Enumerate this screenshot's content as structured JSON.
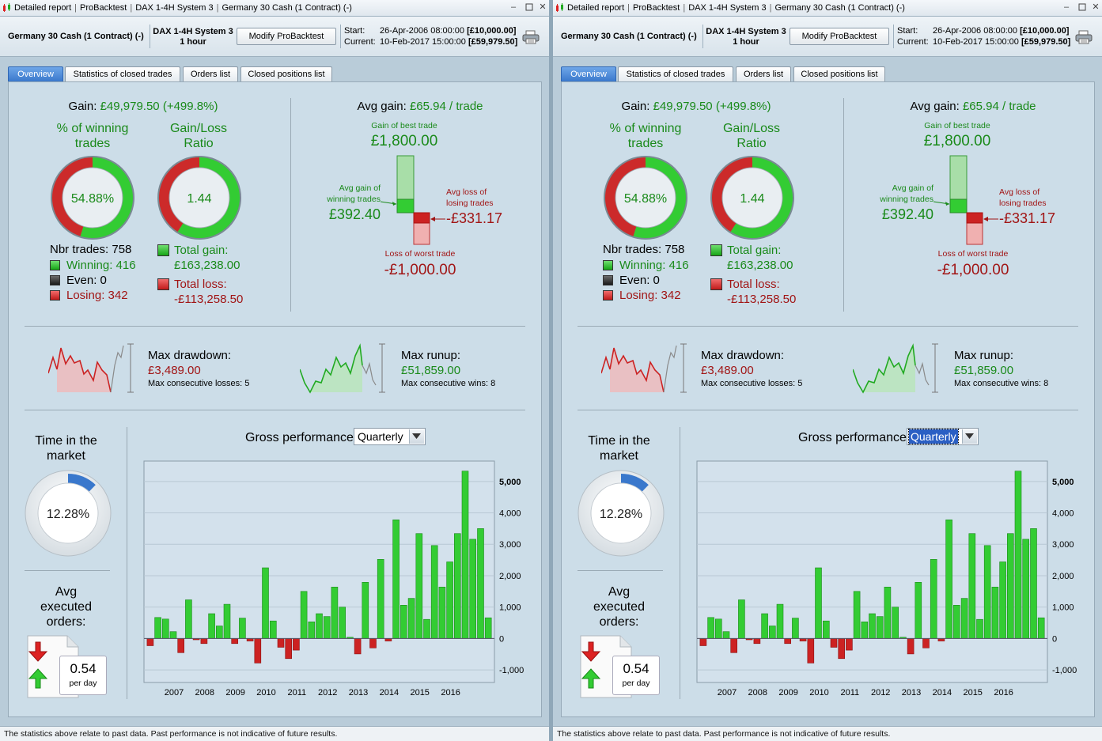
{
  "panels": [
    {
      "window": {
        "title_parts": [
          "Detailed report",
          "ProBacktest",
          "DAX 1-4H System 3",
          "Germany 30 Cash (1 Contract) (-)"
        ]
      },
      "header": {
        "instrument": "Germany 30 Cash (1 Contract) (-)",
        "system_name": "DAX 1-4H System 3",
        "timeframe": "1 hour",
        "modify_button": "Modify ProBacktest",
        "start_label": "Start:",
        "start_date": "26-Apr-2006 08:00:00",
        "start_capital": "[£10,000.00]",
        "current_label": "Current:",
        "current_date": "10-Feb-2017 15:00:00",
        "current_capital": "[£59,979.50]"
      },
      "tabs": [
        "Overview",
        "Statistics of closed trades",
        "Orders list",
        "Closed positions list"
      ],
      "active_tab": 0,
      "gross_dropdown_focused": false
    },
    {
      "window": {
        "title_parts": [
          "Detailed report",
          "ProBacktest",
          "DAX 1-4H System 3",
          "Germany 30 Cash (1 Contract) (-)"
        ]
      },
      "header": {
        "instrument": "Germany 30 Cash (1 Contract) (-)",
        "system_name": "DAX 1-4H System 3",
        "timeframe": "1 hour",
        "modify_button": "Modify ProBacktest",
        "start_label": "Start:",
        "start_date": "26-Apr-2006 08:00:00",
        "start_capital": "[£10,000.00]",
        "current_label": "Current:",
        "current_date": "10-Feb-2017 15:00:00",
        "current_capital": "[£59,979.50]"
      },
      "tabs": [
        "Overview",
        "Statistics of closed trades",
        "Orders list",
        "Closed positions list"
      ],
      "active_tab": 0,
      "gross_dropdown_focused": true
    }
  ],
  "overview": {
    "gain_label": "Gain:",
    "gain_value": "£49,979.50 (+499.8%)",
    "winning_pct_title_1": "% of winning",
    "winning_pct_title_2": "trades",
    "winning_pct_value": "54.88%",
    "winning_fraction": 0.5488,
    "ratio_title_1": "Gain/Loss",
    "ratio_title_2": "Ratio",
    "ratio_value": "1.44",
    "ratio_green_fraction": 0.59,
    "nbr_trades_label": "Nbr trades:",
    "nbr_trades": "758",
    "winning_label": "Winning:",
    "winning": "416",
    "even_label": "Even:",
    "even": "0",
    "losing_label": "Losing:",
    "losing": "342",
    "total_gain_label": "Total gain:",
    "total_gain": "£163,238.00",
    "total_loss_label": "Total loss:",
    "total_loss": "-£113,258.50",
    "avg_gain_label": "Avg gain:",
    "avg_gain_value": "£65.94 / trade",
    "best_trade_label": "Gain of best trade",
    "best_trade": "£1,800.00",
    "avg_win_label_1": "Avg gain of",
    "avg_win_label_2": "winning trades",
    "avg_win": "£392.40",
    "avg_loss_label_1": "Avg loss of",
    "avg_loss_label_2": "losing trades",
    "avg_loss": "-£331.17",
    "worst_trade_label": "Loss of worst trade",
    "worst_trade": "-£1,000.00",
    "max_drawdown_label": "Max drawdown:",
    "max_drawdown": "£3,489.00",
    "max_consec_losses_label": "Max consecutive losses:",
    "max_consec_losses": "5",
    "max_runup_label": "Max runup:",
    "max_runup": "£51,859.00",
    "max_consec_wins_label": "Max consecutive wins:",
    "max_consec_wins": "8",
    "time_in_market_title_1": "Time in the",
    "time_in_market_title_2": "market",
    "time_in_market": "12.28%",
    "time_in_market_fraction": 0.1228,
    "avg_orders_title_1": "Avg",
    "avg_orders_title_2": "executed",
    "avg_orders_title_3": "orders:",
    "avg_orders": "0.54",
    "avg_orders_unit": "per day",
    "gross_title": "Gross performance",
    "gross_period": "Quarterly"
  },
  "colors": {
    "green": "#1a8a1a",
    "red": "#a11515",
    "bar_green": "#33cc33",
    "bar_red": "#cc2222",
    "accent": "#3a78cc"
  },
  "chart_data": {
    "type": "bar",
    "x_tick_labels": [
      "2007",
      "2008",
      "2009",
      "2010",
      "2011",
      "2012",
      "2013",
      "2014",
      "2015",
      "2016"
    ],
    "y_tick_labels": [
      "-1,000",
      "0",
      "1,000",
      "2,000",
      "3,000",
      "4,000",
      "5,000"
    ],
    "ylim": [
      -1400,
      5650
    ],
    "values": [
      -230,
      670,
      620,
      220,
      -450,
      1230,
      -40,
      -160,
      790,
      400,
      1090,
      -160,
      650,
      -80,
      -780,
      2250,
      560,
      -280,
      -640,
      -370,
      1500,
      530,
      790,
      700,
      1640,
      1000,
      40,
      -490,
      1790,
      -300,
      2520,
      -80,
      3780,
      1060,
      1280,
      3340,
      610,
      2960,
      1640,
      2440,
      3340,
      5330,
      3160,
      3500,
      660
    ],
    "grid": true,
    "legend": "none"
  },
  "status_text": "The statistics above relate to past data. Past performance is not indicative of future results."
}
